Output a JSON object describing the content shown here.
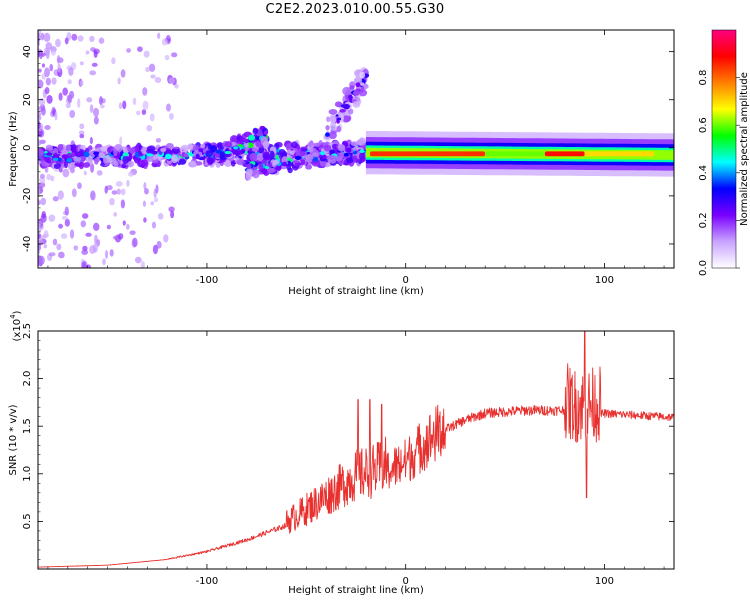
{
  "title": "C2E2.2023.010.00.55.G30",
  "chart_data": [
    {
      "type": "heatmap",
      "xlabel": "Height of straight line (km)",
      "ylabel": "Frequency (Hz)",
      "xlim": [
        -185,
        135
      ],
      "ylim": [
        -50,
        49
      ],
      "xticks": [
        -100,
        0,
        100
      ],
      "yticks": [
        -40,
        -20,
        0,
        20,
        40
      ],
      "colorbar": {
        "label": "Normalized spectral amplitude",
        "range": [
          0,
          1
        ],
        "ticks": [
          0.0,
          0.2,
          0.4,
          0.6,
          0.8
        ],
        "colors": [
          "#ffffff",
          "#c9a3ff",
          "#7a00ff",
          "#0000ff",
          "#00ffff",
          "#00ff00",
          "#ffff00",
          "#ff8000",
          "#ff0000",
          "#ff0080"
        ]
      },
      "bands": [
        {
          "x_start": -185,
          "x_end": -20,
          "center_freq_start": -4,
          "center_freq_end": -2,
          "amplitude": 0.45,
          "noisy": true
        },
        {
          "x_start": -100,
          "x_end": -70,
          "center_freq_start": -4,
          "center_freq_end": 5,
          "amplitude": 0.5,
          "noisy": true
        },
        {
          "x_start": -80,
          "x_end": -20,
          "center_freq_start": -8,
          "center_freq_end": -1,
          "amplitude": 0.45,
          "noisy": true
        },
        {
          "x_start": -40,
          "x_end": -20,
          "center_freq_start": 5,
          "center_freq_end": 30,
          "amplitude": 0.3,
          "noisy": true
        },
        {
          "x_start": -20,
          "x_end": 135,
          "center_freq_start": -2,
          "center_freq_end": -3,
          "amplitude": 0.85,
          "noisy": false
        }
      ]
    },
    {
      "type": "line",
      "xlabel": "Height of straight line (km)",
      "ylabel": "SNR (10 * v/v)",
      "y_scale_label": "(x10",
      "y_scale_exponent": "4",
      "xlim": [
        -185,
        135
      ],
      "ylim": [
        0,
        2.5
      ],
      "xticks": [
        -100,
        0,
        100
      ],
      "yticks": [
        0.5,
        1.0,
        1.5,
        2.0,
        2.5
      ],
      "color": "#e8302e",
      "envelope": [
        {
          "x": -185,
          "y": 0.02
        },
        {
          "x": -150,
          "y": 0.04
        },
        {
          "x": -120,
          "y": 0.1
        },
        {
          "x": -100,
          "y": 0.18
        },
        {
          "x": -80,
          "y": 0.3
        },
        {
          "x": -60,
          "y": 0.45
        },
        {
          "x": -40,
          "y": 0.7
        },
        {
          "x": -25,
          "y": 0.9
        },
        {
          "x": -15,
          "y": 0.95
        },
        {
          "x": 0,
          "y": 1.1
        },
        {
          "x": 10,
          "y": 1.3
        },
        {
          "x": 20,
          "y": 1.45
        },
        {
          "x": 30,
          "y": 1.55
        },
        {
          "x": 40,
          "y": 1.62
        },
        {
          "x": 60,
          "y": 1.65
        },
        {
          "x": 80,
          "y": 1.65
        },
        {
          "x": 85,
          "y": 1.6
        },
        {
          "x": 90,
          "y": 1.6
        },
        {
          "x": 100,
          "y": 1.62
        },
        {
          "x": 135,
          "y": 1.58
        }
      ],
      "peaks": [
        {
          "x": -24,
          "y": 1.78
        },
        {
          "x": -18,
          "y": 1.78
        },
        {
          "x": -12,
          "y": 1.73
        },
        {
          "x": 90,
          "y": 2.55
        },
        {
          "x": 91,
          "y": 0.75
        }
      ]
    }
  ]
}
